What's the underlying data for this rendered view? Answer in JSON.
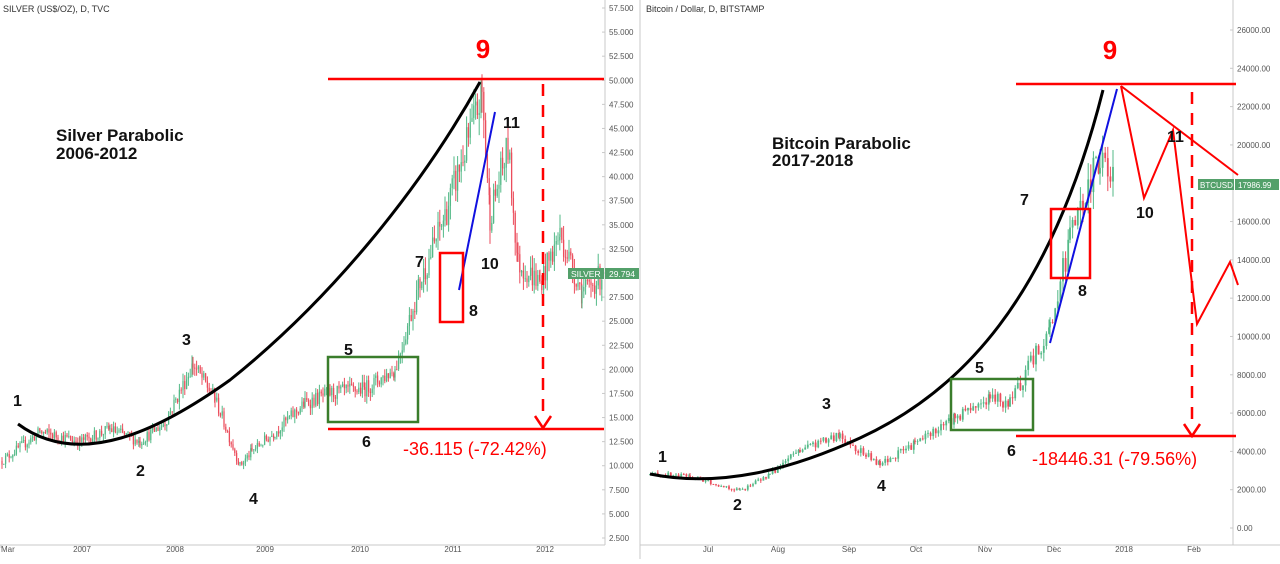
{
  "panels": [
    {
      "id": "silver",
      "header": "SILVER (US$/OZ), D, TVC",
      "title_line1": "Silver Parabolic",
      "title_line2": "2006-2012",
      "y_ticks": [
        "57.500",
        "55.000",
        "52.500",
        "50.000",
        "47.500",
        "45.000",
        "42.500",
        "40.000",
        "37.500",
        "35.000",
        "32.500",
        "30.000",
        "27.500",
        "25.000",
        "22.500",
        "20.000",
        "17.500",
        "15.000",
        "12.500",
        "10.000",
        "7.500",
        "5.000",
        "2.500"
      ],
      "x_ticks": [
        "Mar",
        "2007",
        "2008",
        "2009",
        "2010",
        "2011",
        "2012"
      ],
      "price_tag": "SILVER",
      "price_value": "29.794",
      "peak_label": "9",
      "wave_labels": [
        "1",
        "2",
        "3",
        "4",
        "5",
        "6",
        "7",
        "8",
        "10",
        "11"
      ],
      "drop_label": "-36.115 (-72.42%)"
    },
    {
      "id": "bitcoin",
      "header": "Bitcoin / Dollar, D, BITSTAMP",
      "title_line1": "Bitcoin Parabolic",
      "title_line2": "2017-2018",
      "y_ticks": [
        "26000.00",
        "24000.00",
        "22000.00",
        "20000.00",
        "18000.00",
        "16000.00",
        "14000.00",
        "12000.00",
        "10000.00",
        "8000.00",
        "6000.00",
        "4000.00",
        "2000.00",
        "0.00"
      ],
      "x_ticks": [
        "Jul",
        "Aug",
        "Sep",
        "Oct",
        "Nov",
        "Dec",
        "2018",
        "Feb"
      ],
      "price_tag": "BTCUSD",
      "price_value": "17986.99",
      "peak_label": "9",
      "wave_labels": [
        "1",
        "2",
        "3",
        "4",
        "5",
        "6",
        "7",
        "8",
        "10",
        "11"
      ],
      "drop_label": "-18446.31 (-79.56%)"
    }
  ],
  "colors": {
    "candle_up": "#53b987",
    "candle_down": "#eb4d5c",
    "parabola": "#000000",
    "trend": "#1010e0",
    "annotation_red": "#ff0000",
    "box_green": "#3a7d2b",
    "price_tag_bg": "#53a06a"
  },
  "chart_data": [
    {
      "type": "candlestick",
      "title": "SILVER (US$/OZ), D, TVC",
      "ylim": [
        2.5,
        57.5
      ],
      "x": [
        "2006-03",
        "2006-07",
        "2006-11",
        "2007-03",
        "2007-07",
        "2007-11",
        "2008-03",
        "2008-07",
        "2008-10",
        "2009-01",
        "2009-05",
        "2009-09",
        "2010-01",
        "2010-05",
        "2010-09",
        "2010-12",
        "2011-03",
        "2011-04",
        "2011-06",
        "2011-08",
        "2011-09",
        "2011-12",
        "2012-03",
        "2012-06",
        "2012-08"
      ],
      "y": [
        10.5,
        13.5,
        12.5,
        13.8,
        12.5,
        14.5,
        20.5,
        17.0,
        10.0,
        11.5,
        13.5,
        16.5,
        17.5,
        18.0,
        20.0,
        29.0,
        36.0,
        48.5,
        36.0,
        43.0,
        31.0,
        29.0,
        34.0,
        28.0,
        29.8
      ],
      "annotations": {
        "top_line": 49.8,
        "bottom_line": 13.7,
        "drop": "-36.115 (-72.42%)",
        "last_price": 29.794
      }
    },
    {
      "type": "candlestick",
      "title": "Bitcoin / Dollar, D, BITSTAMP",
      "ylim": [
        0,
        26000
      ],
      "x": [
        "2017-05-15",
        "2017-06-15",
        "2017-07-16",
        "2017-08-01",
        "2017-08-20",
        "2017-09-01",
        "2017-09-15",
        "2017-10-01",
        "2017-10-20",
        "2017-11-01",
        "2017-11-15",
        "2017-12-01",
        "2017-12-10",
        "2017-12-17",
        "2017-12-20"
      ],
      "y": [
        2800,
        2700,
        1950,
        2800,
        4100,
        4800,
        3300,
        4400,
        5800,
        6800,
        6500,
        10500,
        15000,
        19500,
        18000
      ],
      "annotations": {
        "top_line": 23200,
        "bottom_line": 4700,
        "drop": "-18446.31 (-79.56%)",
        "last_price": 17986.99
      }
    }
  ]
}
